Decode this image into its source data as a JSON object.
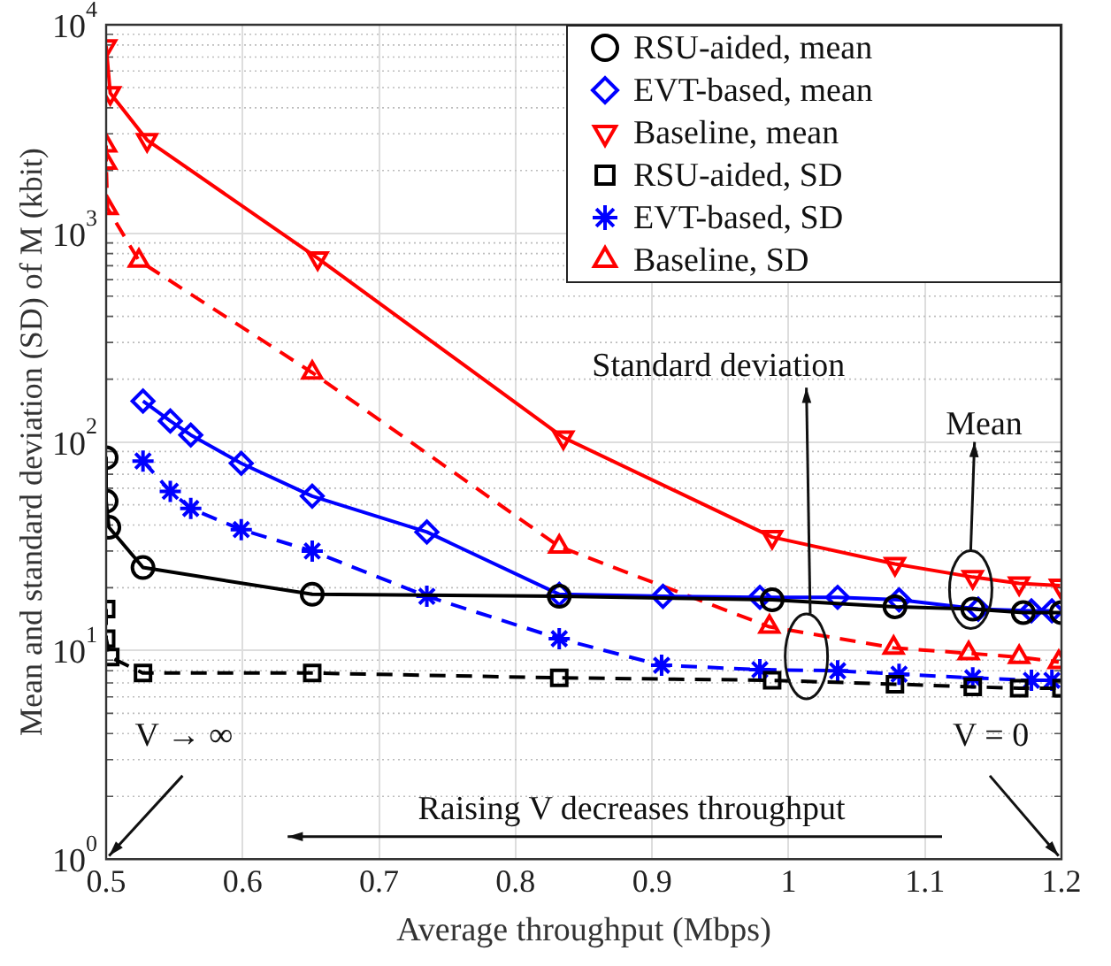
{
  "chart_data": {
    "type": "line",
    "xlabel": "Average throughput (Mbps)",
    "ylabel": "Mean and standard deviation (SD) of M (kbit)",
    "xlim": [
      0.5,
      1.2
    ],
    "xticks": [
      0.5,
      0.6,
      0.7,
      0.8,
      0.9,
      1,
      1.1,
      1.2
    ],
    "ylim": [
      1,
      10000
    ],
    "log": true,
    "yticks": [
      {
        "value": 1,
        "label": "10$^{0}$"
      },
      {
        "value": 10,
        "label": "10$^{1}$"
      },
      {
        "value": 100,
        "label": "10$^{2}$"
      },
      {
        "value": 1000,
        "label": "10$^{3}$"
      },
      {
        "value": 10000,
        "label": "10$^{4}$"
      }
    ],
    "grid": true,
    "legend": "top right",
    "series": [
      {
        "name": "RSU-aided, mean",
        "color": "#000000",
        "marker": "circle",
        "line_style": "solid",
        "x": [
          0.5,
          0.5,
          0.502,
          0.527,
          0.651,
          0.832,
          0.988,
          1.078,
          1.135,
          1.172,
          1.2
        ],
        "values": [
          84,
          52,
          39,
          25,
          18.6,
          18.2,
          17.5,
          16.2,
          15.8,
          15.2,
          15.2
        ]
      },
      {
        "name": "EVT-based, mean",
        "color": "#0000ff",
        "marker": "diamond",
        "line_style": "solid",
        "x": [
          0.527,
          0.547,
          0.562,
          0.599,
          0.651,
          0.735,
          0.832,
          0.908,
          0.979,
          1.036,
          1.081,
          1.139,
          1.178,
          1.193
        ],
        "values": [
          157,
          126,
          108,
          79,
          55,
          37,
          18.6,
          18.2,
          18,
          18,
          17.5,
          15.8,
          15.5,
          15.5
        ]
      },
      {
        "name": "Baseline, mean",
        "color": "#ff0000",
        "marker": "triangle-down",
        "line_style": "solid",
        "x": [
          0.5,
          0.503,
          0.53,
          0.655,
          0.835,
          0.988,
          1.078,
          1.135,
          1.169,
          1.199
        ],
        "values": [
          7900,
          4700,
          2800,
          760,
          105,
          35,
          26,
          22.5,
          21,
          20.5
        ]
      },
      {
        "name": "RSU-aided, SD",
        "color": "#000000",
        "marker": "square",
        "line_style": "dashed",
        "x": [
          0.5,
          0.5,
          0.503,
          0.527,
          0.651,
          0.832,
          0.988,
          1.078,
          1.135,
          1.169,
          1.2
        ],
        "values": [
          15.8,
          11.4,
          9.3,
          7.8,
          7.8,
          7.4,
          7.2,
          6.9,
          6.7,
          6.6,
          6.6
        ]
      },
      {
        "name": "EVT-based, SD",
        "color": "#0000ff",
        "marker": "cross",
        "line_style": "dashed",
        "x": [
          0.527,
          0.547,
          0.562,
          0.599,
          0.651,
          0.735,
          0.832,
          0.907,
          0.979,
          1.036,
          1.081,
          1.135,
          1.178,
          1.193
        ],
        "values": [
          81,
          58,
          48,
          38,
          30,
          18.2,
          11.4,
          8.5,
          8.1,
          8,
          7.7,
          7.4,
          7.2,
          7.2
        ]
      },
      {
        "name": "Baseline, SD",
        "color": "#ff0000",
        "marker": "triangle",
        "line_style": "dashed",
        "x": [
          0.5,
          0.5,
          0.501,
          0.524,
          0.651,
          0.832,
          0.986,
          1.077,
          1.132,
          1.169,
          1.198
        ],
        "values": [
          2640,
          2180,
          1320,
          740,
          215,
          31.5,
          13,
          10.3,
          9.7,
          9.3,
          8.8
        ]
      }
    ],
    "annotations": [
      "Standard deviation",
      "Mean",
      "V → ∞",
      "V = 0",
      "Raising V decreases throughput"
    ]
  }
}
